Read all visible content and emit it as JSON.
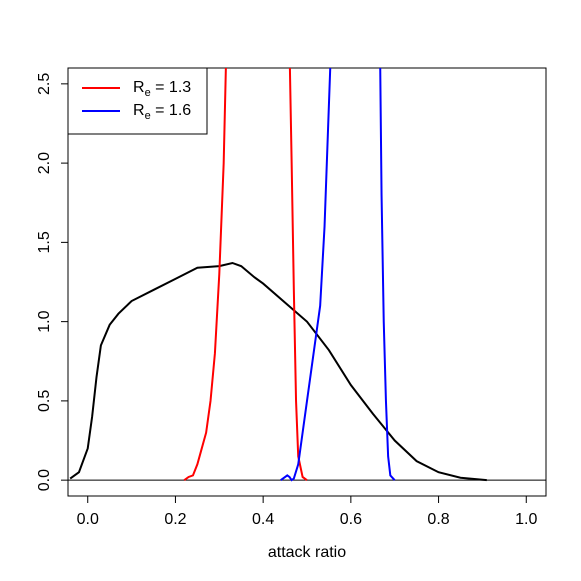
{
  "chart_data": {
    "type": "line",
    "xlabel": "attack ratio",
    "xlim": [
      -0.045,
      1.045
    ],
    "ylim": [
      -0.1,
      2.6
    ],
    "xticks": [
      {
        "value": 0,
        "label": "0.0"
      },
      {
        "value": 0.2,
        "label": "0.2"
      },
      {
        "value": 0.4,
        "label": "0.4"
      },
      {
        "value": 0.6,
        "label": "0.6"
      },
      {
        "value": 0.8,
        "label": "0.8"
      },
      {
        "value": 1,
        "label": "1.0"
      }
    ],
    "yticks": [
      {
        "value": 0,
        "label": "0.0"
      },
      {
        "value": 0.5,
        "label": "0.5"
      },
      {
        "value": 1,
        "label": "1.0"
      },
      {
        "value": 1.5,
        "label": "1.5"
      },
      {
        "value": 2,
        "label": "2.0"
      },
      {
        "value": 2.5,
        "label": "2.5"
      }
    ],
    "hline": 0,
    "grid": false,
    "legend": "top-left",
    "series": [
      {
        "color": "#000000",
        "x": [
          -0.04,
          -0.02,
          0,
          0.01,
          0.02,
          0.03,
          0.05,
          0.07,
          0.1,
          0.15,
          0.2,
          0.25,
          0.3,
          0.33,
          0.35,
          0.38,
          0.4,
          0.45,
          0.5,
          0.55,
          0.6,
          0.65,
          0.7,
          0.75,
          0.8,
          0.85,
          0.91
        ],
        "values": [
          0.01,
          0.05,
          0.2,
          0.4,
          0.65,
          0.85,
          0.98,
          1.05,
          1.13,
          1.2,
          1.27,
          1.34,
          1.35,
          1.37,
          1.35,
          1.28,
          1.24,
          1.12,
          1.0,
          0.82,
          0.6,
          0.42,
          0.25,
          0.12,
          0.05,
          0.015,
          0.0
        ]
      },
      {
        "name": "R",
        "name_sub": "e",
        "name_rest": " = 1.3",
        "color": "#ff0000",
        "x": [
          0.22,
          0.23,
          0.24,
          0.25,
          0.26,
          0.27,
          0.28,
          0.29,
          0.3,
          0.31,
          0.315,
          0.39,
          0.461,
          0.465,
          0.47,
          0.475,
          0.48,
          0.49,
          0.5
        ],
        "values": [
          0,
          0.02,
          0.03,
          0.1,
          0.2,
          0.3,
          0.5,
          0.8,
          1.3,
          2.0,
          2.6,
          null,
          2.6,
          2.0,
          1.2,
          0.5,
          0.15,
          0.02,
          0
        ]
      },
      {
        "name": "R",
        "name_sub": "e",
        "name_rest": " = 1.6",
        "color": "#0000ff",
        "x": [
          0.44,
          0.455,
          0.46,
          0.465,
          0.47,
          0.48,
          0.49,
          0.5,
          0.51,
          0.52,
          0.53,
          0.54,
          0.553,
          0.61,
          0.667,
          0.67,
          0.675,
          0.68,
          0.685,
          0.69,
          0.7
        ],
        "values": [
          0,
          0.03,
          0.02,
          0,
          0.01,
          0.1,
          0.3,
          0.5,
          0.7,
          0.9,
          1.1,
          1.6,
          2.6,
          null,
          2.6,
          1.8,
          1.0,
          0.5,
          0.15,
          0.03,
          0
        ]
      }
    ]
  }
}
